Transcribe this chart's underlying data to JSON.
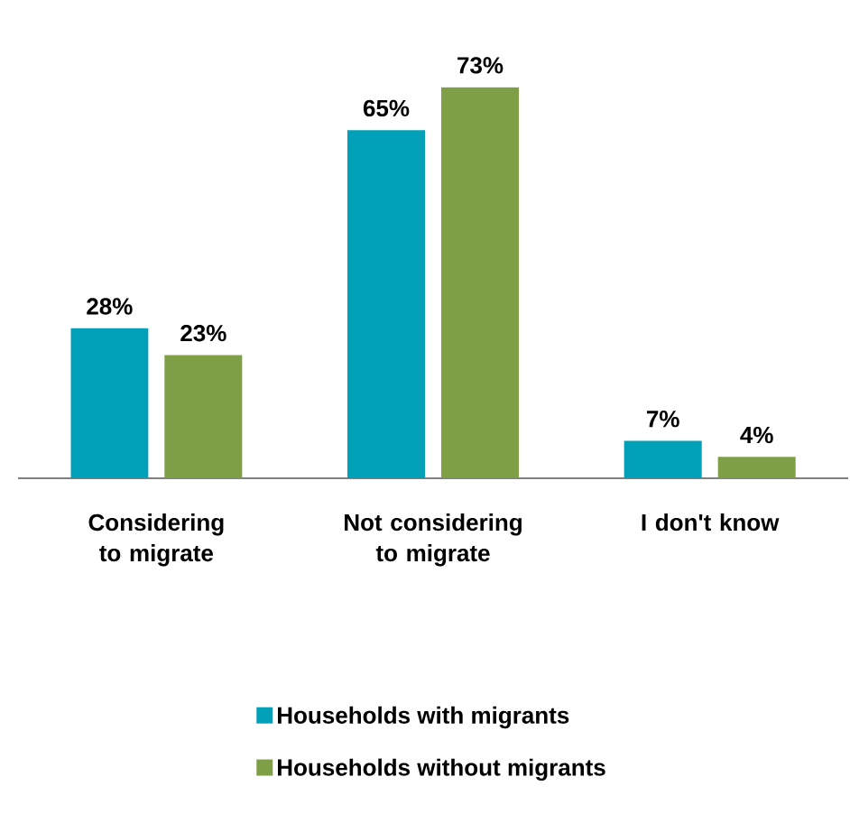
{
  "chart_data": {
    "type": "bar",
    "categories": [
      "Considering to migrate",
      "Not considering to migrate",
      "I don't know"
    ],
    "series": [
      {
        "name": "Households with migrants",
        "color": "#00a0b8",
        "values": [
          28,
          65,
          7
        ],
        "value_labels": [
          "28%",
          "65%",
          "7%"
        ]
      },
      {
        "name": "Households without migrants",
        "color": "#7f9f47",
        "values": [
          23,
          73,
          4
        ],
        "value_labels": [
          "23%",
          "73%",
          "4%"
        ]
      }
    ],
    "legend": "bottom"
  }
}
